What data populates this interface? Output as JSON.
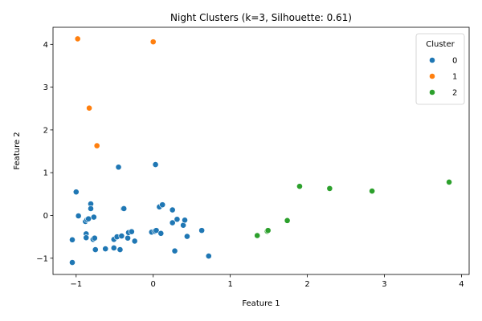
{
  "chart_data": {
    "type": "scatter",
    "title": "Night Clusters (k=3, Silhouette: 0.61)",
    "xlabel": "Feature 1",
    "ylabel": "Feature 2",
    "xlim": [
      -1.3,
      4.1
    ],
    "ylim": [
      -1.38,
      4.4
    ],
    "xticks": [
      -1,
      0,
      1,
      2,
      3,
      4
    ],
    "yticks": [
      -1,
      0,
      1,
      2,
      3,
      4
    ],
    "grid": false,
    "legend": {
      "title": "Cluster",
      "placement": "top-right"
    },
    "series": [
      {
        "name": "0",
        "color": "#1f77b4",
        "points": [
          [
            -1.0,
            0.55
          ],
          [
            -1.05,
            -0.57
          ],
          [
            -1.05,
            -1.1
          ],
          [
            -0.97,
            -0.01
          ],
          [
            -0.88,
            -0.14
          ],
          [
            -0.86,
            -0.1
          ],
          [
            -0.84,
            -0.08
          ],
          [
            -0.87,
            -0.43
          ],
          [
            -0.87,
            -0.52
          ],
          [
            -0.81,
            0.27
          ],
          [
            -0.81,
            0.16
          ],
          [
            -0.78,
            -0.56
          ],
          [
            -0.76,
            -0.53
          ],
          [
            -0.77,
            -0.04
          ],
          [
            -0.75,
            -0.8
          ],
          [
            -0.62,
            -0.78
          ],
          [
            -0.51,
            -0.76
          ],
          [
            -0.51,
            -0.56
          ],
          [
            -0.47,
            -0.5
          ],
          [
            -0.45,
            1.13
          ],
          [
            -0.43,
            -0.8
          ],
          [
            -0.41,
            -0.48
          ],
          [
            -0.39,
            0.16
          ],
          [
            -0.38,
            0.16
          ],
          [
            -0.33,
            -0.53
          ],
          [
            -0.32,
            -0.4
          ],
          [
            -0.28,
            -0.38
          ],
          [
            -0.24,
            -0.6
          ],
          [
            -0.02,
            -0.39
          ],
          [
            0.02,
            -0.37
          ],
          [
            0.03,
            1.19
          ],
          [
            0.04,
            -0.35
          ],
          [
            0.08,
            0.2
          ],
          [
            0.1,
            -0.42
          ],
          [
            0.12,
            0.25
          ],
          [
            0.25,
            -0.17
          ],
          [
            0.25,
            0.13
          ],
          [
            0.28,
            -0.83
          ],
          [
            0.31,
            -0.09
          ],
          [
            0.39,
            -0.23
          ],
          [
            0.41,
            -0.11
          ],
          [
            0.44,
            -0.49
          ],
          [
            0.63,
            -0.35
          ],
          [
            0.72,
            -0.95
          ]
        ]
      },
      {
        "name": "1",
        "color": "#ff7f0e",
        "points": [
          [
            -0.98,
            4.13
          ],
          [
            0.0,
            4.06
          ],
          [
            -0.83,
            2.51
          ],
          [
            -0.73,
            1.63
          ]
        ]
      },
      {
        "name": "2",
        "color": "#2ca02c",
        "points": [
          [
            1.35,
            -0.47
          ],
          [
            1.48,
            -0.37
          ],
          [
            1.49,
            -0.35
          ],
          [
            1.74,
            -0.12
          ],
          [
            1.9,
            0.68
          ],
          [
            2.29,
            0.63
          ],
          [
            2.84,
            0.57
          ],
          [
            3.84,
            0.78
          ]
        ]
      }
    ]
  }
}
